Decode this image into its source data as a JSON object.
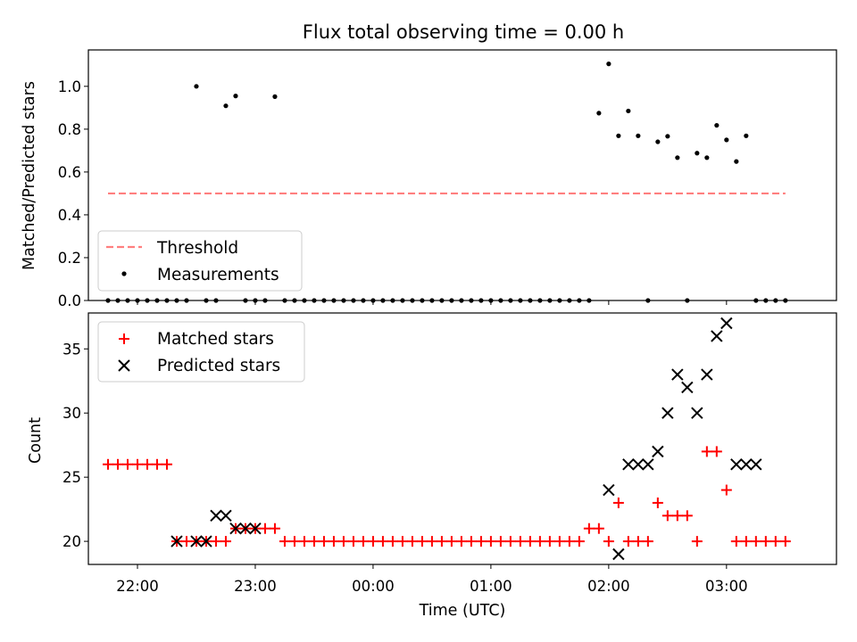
{
  "chart_data": [
    {
      "type": "scatter",
      "title": "Flux total observing time = 0.00 h",
      "xlabel": "",
      "ylabel": "Matched/Predicted stars",
      "xlim": [
        "21:35",
        "03:56"
      ],
      "ylim": [
        0,
        1.17
      ],
      "yticks": [
        0.0,
        0.2,
        0.4,
        0.6,
        0.8,
        1.0
      ],
      "ytick_labels": [
        "0.0",
        "0.2",
        "0.4",
        "0.6",
        "0.8",
        "1.0"
      ],
      "legend_position": "lower-left",
      "series": [
        {
          "name": "Threshold",
          "kind": "dashed-line",
          "color": "#ff7f7f",
          "x": [
            "21:45",
            "03:30"
          ],
          "y": [
            0.5,
            0.5
          ]
        },
        {
          "name": "Measurements",
          "kind": "dot",
          "color": "#000000",
          "x": [
            "21:45",
            "21:50",
            "21:55",
            "22:00",
            "22:05",
            "22:10",
            "22:15",
            "22:20",
            "22:25",
            "22:30",
            "22:35",
            "22:40",
            "22:45",
            "22:50",
            "22:55",
            "23:00",
            "23:05",
            "23:10",
            "23:15",
            "23:20",
            "23:25",
            "23:30",
            "23:35",
            "23:40",
            "23:45",
            "23:50",
            "23:55",
            "00:00",
            "00:05",
            "00:10",
            "00:15",
            "00:20",
            "00:25",
            "00:30",
            "00:35",
            "00:40",
            "00:45",
            "00:50",
            "00:55",
            "01:00",
            "01:05",
            "01:10",
            "01:15",
            "01:20",
            "01:25",
            "01:30",
            "01:35",
            "01:40",
            "01:45",
            "01:50",
            "01:55",
            "02:00",
            "02:05",
            "02:10",
            "02:15",
            "02:20",
            "02:25",
            "02:30",
            "02:35",
            "02:40",
            "02:45",
            "02:50",
            "02:55",
            "03:00",
            "03:05",
            "03:10",
            "03:15",
            "03:20",
            "03:25",
            "03:30"
          ],
          "y": [
            0,
            0,
            0,
            0,
            0,
            0,
            0,
            0,
            0,
            1.0,
            0,
            0,
            0.909,
            0.955,
            0,
            0,
            0,
            0.952,
            0,
            0,
            0,
            0,
            0,
            0,
            0,
            0,
            0,
            0,
            0,
            0,
            0,
            0,
            0,
            0,
            0,
            0,
            0,
            0,
            0,
            0,
            0,
            0,
            0,
            0,
            0,
            0,
            0,
            0,
            0,
            0,
            0.875,
            1.105,
            0.769,
            0.885,
            0.769,
            0,
            0.741,
            0.767,
            0.667,
            0,
            0.688,
            0.667,
            0.818,
            0.75,
            0.649,
            0.769,
            0,
            0,
            0,
            0
          ]
        }
      ]
    },
    {
      "type": "scatter",
      "title": "",
      "xlabel": "Time (UTC)",
      "ylabel": "Count",
      "xlim": [
        "21:35",
        "03:56"
      ],
      "ylim": [
        18.2,
        37.8
      ],
      "xticks": [
        "22:00",
        "23:00",
        "00:00",
        "01:00",
        "02:00",
        "03:00"
      ],
      "yticks": [
        20,
        25,
        30,
        35
      ],
      "ytick_labels": [
        "20",
        "25",
        "30",
        "35"
      ],
      "legend_position": "upper-left",
      "series": [
        {
          "name": "Matched stars",
          "marker": "plus",
          "color": "#ff0000",
          "x": [
            "21:45",
            "21:50",
            "21:55",
            "22:00",
            "22:05",
            "22:10",
            "22:15",
            "22:20",
            "22:25",
            "22:30",
            "22:35",
            "22:40",
            "22:45",
            "22:50",
            "22:55",
            "23:00",
            "23:05",
            "23:10",
            "23:15",
            "23:20",
            "23:25",
            "23:30",
            "23:35",
            "23:40",
            "23:45",
            "23:50",
            "23:55",
            "00:00",
            "00:05",
            "00:10",
            "00:15",
            "00:20",
            "00:25",
            "00:30",
            "00:35",
            "00:40",
            "00:45",
            "00:50",
            "00:55",
            "01:00",
            "01:05",
            "01:10",
            "01:15",
            "01:20",
            "01:25",
            "01:30",
            "01:35",
            "01:40",
            "01:45",
            "01:50",
            "01:55",
            "02:00",
            "02:05",
            "02:10",
            "02:15",
            "02:20",
            "02:25",
            "02:30",
            "02:35",
            "02:40",
            "02:45",
            "02:50",
            "02:55",
            "03:00",
            "03:05",
            "03:10",
            "03:15",
            "03:20",
            "03:25",
            "03:30"
          ],
          "y": [
            26,
            26,
            26,
            26,
            26,
            26,
            26,
            20,
            20,
            20,
            20,
            20,
            20,
            21,
            21,
            21,
            21,
            21,
            20,
            20,
            20,
            20,
            20,
            20,
            20,
            20,
            20,
            20,
            20,
            20,
            20,
            20,
            20,
            20,
            20,
            20,
            20,
            20,
            20,
            20,
            20,
            20,
            20,
            20,
            20,
            20,
            20,
            20,
            20,
            21,
            21,
            20,
            23,
            20,
            20,
            20,
            23,
            22,
            22,
            22,
            20,
            27,
            27,
            24,
            20,
            20,
            20,
            20,
            20,
            20
          ]
        },
        {
          "name": "Predicted stars",
          "marker": "x",
          "color": "#000000",
          "x": [
            "22:20",
            "22:30",
            "22:35",
            "22:40",
            "22:45",
            "22:50",
            "22:55",
            "23:00",
            "02:00",
            "02:05",
            "02:10",
            "02:15",
            "02:20",
            "02:25",
            "02:30",
            "02:35",
            "02:40",
            "02:45",
            "02:50",
            "02:55",
            "03:00",
            "03:05",
            "03:10",
            "03:15"
          ],
          "y": [
            20,
            20,
            20,
            22,
            22,
            21,
            21,
            21,
            24,
            19,
            26,
            26,
            26,
            27,
            30,
            33,
            32,
            30,
            33,
            36,
            37,
            26,
            26,
            26
          ]
        }
      ]
    }
  ]
}
